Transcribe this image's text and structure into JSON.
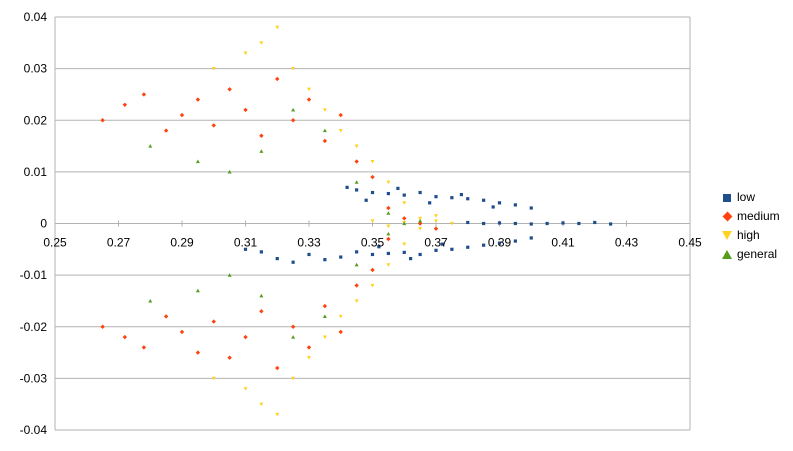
{
  "chart_data": {
    "type": "scatter",
    "title": "",
    "xlabel": "",
    "ylabel": "",
    "xlim": [
      0.25,
      0.45
    ],
    "ylim": [
      -0.04,
      0.04
    ],
    "x_ticks": [
      "0.25",
      "0.27",
      "0.29",
      "0.31",
      "0.33",
      "0.35",
      "0.37",
      "0.39",
      "0.41",
      "0.43",
      "0.45"
    ],
    "y_ticks": [
      "0.04",
      "0.03",
      "0.02",
      "0.01",
      "0",
      "-0.01",
      "-0.02",
      "-0.03",
      "-0.04"
    ],
    "grid": "horizontal",
    "legend_position": "right",
    "series": [
      {
        "name": "low",
        "color": "#1f4e8c",
        "marker": "square",
        "points": [
          [
            0.345,
            0.0065
          ],
          [
            0.35,
            0.006
          ],
          [
            0.355,
            0.0058
          ],
          [
            0.36,
            0.0055
          ],
          [
            0.365,
            0.006
          ],
          [
            0.37,
            0.0052
          ],
          [
            0.375,
            0.005
          ],
          [
            0.38,
            0.0048
          ],
          [
            0.385,
            0.0045
          ],
          [
            0.39,
            0.004
          ],
          [
            0.395,
            0.0036
          ],
          [
            0.4,
            0.003
          ],
          [
            0.348,
            0.0045
          ],
          [
            0.358,
            0.0068
          ],
          [
            0.368,
            0.004
          ],
          [
            0.378,
            0.0056
          ],
          [
            0.388,
            0.0032
          ],
          [
            0.342,
            0.007
          ],
          [
            0.345,
            -0.0055
          ],
          [
            0.35,
            -0.006
          ],
          [
            0.355,
            -0.0058
          ],
          [
            0.36,
            -0.0056
          ],
          [
            0.365,
            -0.006
          ],
          [
            0.37,
            -0.0052
          ],
          [
            0.375,
            -0.005
          ],
          [
            0.38,
            -0.0046
          ],
          [
            0.385,
            -0.0042
          ],
          [
            0.39,
            -0.0038
          ],
          [
            0.395,
            -0.0034
          ],
          [
            0.4,
            -0.0028
          ],
          [
            0.34,
            -0.0065
          ],
          [
            0.335,
            -0.007
          ],
          [
            0.33,
            -0.006
          ],
          [
            0.325,
            -0.0075
          ],
          [
            0.32,
            -0.0068
          ],
          [
            0.315,
            -0.0055
          ],
          [
            0.31,
            -0.005
          ],
          [
            0.352,
            -0.0045
          ],
          [
            0.362,
            -0.0068
          ],
          [
            0.372,
            -0.004
          ],
          [
            0.38,
            0.0002
          ],
          [
            0.385,
            0.0
          ],
          [
            0.39,
            0.0001
          ],
          [
            0.395,
            0.0
          ],
          [
            0.4,
            -0.0001
          ],
          [
            0.405,
            0.0
          ],
          [
            0.41,
            0.0001
          ],
          [
            0.415,
            0.0
          ],
          [
            0.42,
            0.0002
          ],
          [
            0.425,
            -0.0001
          ]
        ]
      },
      {
        "name": "medium",
        "color": "#ff420e",
        "marker": "diamond",
        "points": [
          [
            0.265,
            0.02
          ],
          [
            0.272,
            0.023
          ],
          [
            0.278,
            0.025
          ],
          [
            0.285,
            0.018
          ],
          [
            0.29,
            0.021
          ],
          [
            0.295,
            0.024
          ],
          [
            0.3,
            0.019
          ],
          [
            0.305,
            0.026
          ],
          [
            0.31,
            0.022
          ],
          [
            0.315,
            0.017
          ],
          [
            0.32,
            0.028
          ],
          [
            0.325,
            0.02
          ],
          [
            0.33,
            0.024
          ],
          [
            0.335,
            0.016
          ],
          [
            0.34,
            0.021
          ],
          [
            0.345,
            0.012
          ],
          [
            0.35,
            0.009
          ],
          [
            0.355,
            0.003
          ],
          [
            0.36,
            0.001
          ],
          [
            0.365,
            0.0
          ],
          [
            0.37,
            -0.001
          ],
          [
            0.265,
            -0.02
          ],
          [
            0.272,
            -0.022
          ],
          [
            0.278,
            -0.024
          ],
          [
            0.285,
            -0.018
          ],
          [
            0.29,
            -0.021
          ],
          [
            0.295,
            -0.025
          ],
          [
            0.3,
            -0.019
          ],
          [
            0.305,
            -0.026
          ],
          [
            0.31,
            -0.022
          ],
          [
            0.315,
            -0.017
          ],
          [
            0.32,
            -0.028
          ],
          [
            0.325,
            -0.02
          ],
          [
            0.33,
            -0.024
          ],
          [
            0.335,
            -0.016
          ],
          [
            0.34,
            -0.021
          ],
          [
            0.345,
            -0.012
          ],
          [
            0.35,
            -0.009
          ],
          [
            0.355,
            -0.003
          ]
        ]
      },
      {
        "name": "high",
        "color": "#ffd320",
        "marker": "triangle-down",
        "points": [
          [
            0.3,
            0.03
          ],
          [
            0.31,
            0.033
          ],
          [
            0.315,
            0.035
          ],
          [
            0.32,
            0.038
          ],
          [
            0.325,
            0.03
          ],
          [
            0.33,
            0.026
          ],
          [
            0.335,
            0.022
          ],
          [
            0.34,
            0.018
          ],
          [
            0.345,
            0.015
          ],
          [
            0.35,
            0.012
          ],
          [
            0.355,
            0.008
          ],
          [
            0.36,
            0.004
          ],
          [
            0.365,
            0.001
          ],
          [
            0.37,
            0.0005
          ],
          [
            0.375,
            0.0
          ],
          [
            0.35,
            0.0005
          ],
          [
            0.355,
            -0.0005
          ],
          [
            0.36,
            0.0002
          ],
          [
            0.365,
            -0.001
          ],
          [
            0.37,
            0.0015
          ],
          [
            0.3,
            -0.03
          ],
          [
            0.31,
            -0.032
          ],
          [
            0.315,
            -0.035
          ],
          [
            0.32,
            -0.037
          ],
          [
            0.325,
            -0.03
          ],
          [
            0.33,
            -0.026
          ],
          [
            0.335,
            -0.022
          ],
          [
            0.34,
            -0.018
          ],
          [
            0.345,
            -0.015
          ],
          [
            0.35,
            -0.012
          ],
          [
            0.355,
            -0.008
          ],
          [
            0.36,
            -0.004
          ]
        ]
      },
      {
        "name": "general",
        "color": "#579d1c",
        "marker": "triangle-up",
        "points": [
          [
            0.28,
            0.015
          ],
          [
            0.295,
            0.012
          ],
          [
            0.305,
            0.01
          ],
          [
            0.315,
            0.014
          ],
          [
            0.325,
            0.022
          ],
          [
            0.335,
            0.018
          ],
          [
            0.345,
            0.008
          ],
          [
            0.355,
            0.002
          ],
          [
            0.36,
            0.0
          ],
          [
            0.365,
            0.0005
          ],
          [
            0.28,
            -0.015
          ],
          [
            0.295,
            -0.013
          ],
          [
            0.305,
            -0.01
          ],
          [
            0.315,
            -0.014
          ],
          [
            0.325,
            -0.022
          ],
          [
            0.335,
            -0.018
          ],
          [
            0.345,
            -0.008
          ],
          [
            0.355,
            -0.002
          ]
        ]
      }
    ]
  }
}
